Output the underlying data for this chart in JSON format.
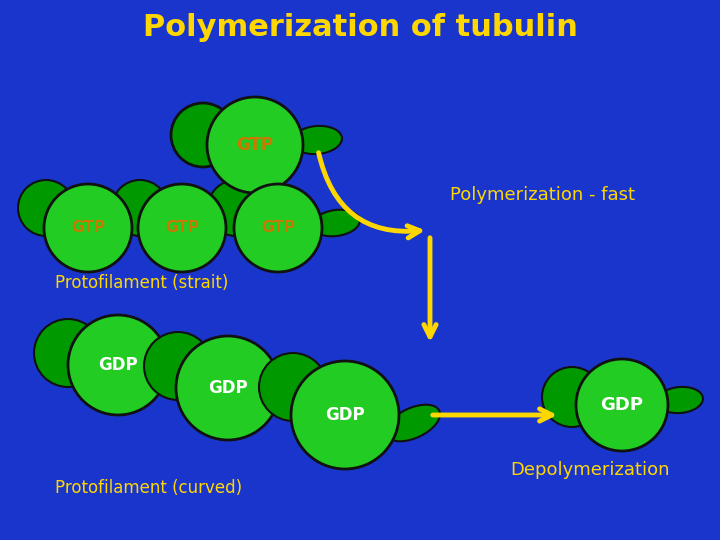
{
  "title": "Polymerization of tubulin",
  "title_color": "#FFD700",
  "title_fontsize": 22,
  "bg_color": "#1a35cc",
  "green_fill": "#22cc22",
  "green_dark": "#006600",
  "green_mid": "#009900",
  "label_gtp_color": "#cc7700",
  "label_gdp_color": "#ffffff",
  "arrow_color": "#FFD700",
  "text_color": "#FFD700",
  "poly_fast_text": "Polymerization - fast",
  "proto_strait_text": "Protofilament (strait)",
  "proto_curved_text": "Protofilament (curved)",
  "depoly_text": "Depolymerization"
}
